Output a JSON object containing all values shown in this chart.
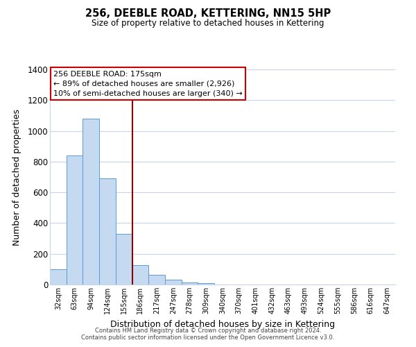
{
  "title": "256, DEEBLE ROAD, KETTERING, NN15 5HP",
  "subtitle": "Size of property relative to detached houses in Kettering",
  "xlabel": "Distribution of detached houses by size in Kettering",
  "ylabel": "Number of detached properties",
  "bar_labels": [
    "32sqm",
    "63sqm",
    "94sqm",
    "124sqm",
    "155sqm",
    "186sqm",
    "217sqm",
    "247sqm",
    "278sqm",
    "309sqm",
    "340sqm",
    "370sqm",
    "401sqm",
    "432sqm",
    "463sqm",
    "493sqm",
    "524sqm",
    "555sqm",
    "586sqm",
    "616sqm",
    "647sqm"
  ],
  "bar_values": [
    100,
    840,
    1080,
    693,
    330,
    125,
    62,
    30,
    15,
    8,
    0,
    0,
    0,
    0,
    0,
    0,
    0,
    0,
    0,
    0,
    0
  ],
  "bar_color": "#c5d9f0",
  "bar_edge_color": "#5b9bd5",
  "ylim": [
    0,
    1400
  ],
  "yticks": [
    0,
    200,
    400,
    600,
    800,
    1000,
    1200,
    1400
  ],
  "property_line_color": "#8b0000",
  "annotation_title": "256 DEEBLE ROAD: 175sqm",
  "annotation_line1": "← 89% of detached houses are smaller (2,926)",
  "annotation_line2": "10% of semi-detached houses are larger (340) →",
  "annotation_box_color": "#ffffff",
  "annotation_box_edge_color": "#cc0000",
  "footer_line1": "Contains HM Land Registry data © Crown copyright and database right 2024.",
  "footer_line2": "Contains public sector information licensed under the Open Government Licence v3.0.",
  "background_color": "#ffffff",
  "grid_color": "#c8d4e8"
}
